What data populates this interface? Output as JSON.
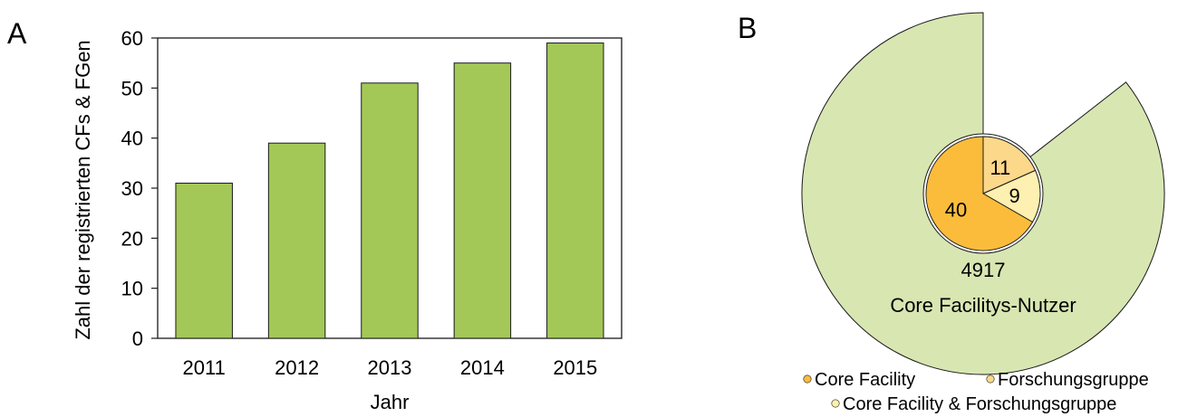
{
  "panels": {
    "a_label": "A",
    "b_label": "B"
  },
  "colors": {
    "bar": "#a3c857",
    "bar_stroke": "#1a1a1a",
    "ring": "#d8e6b2",
    "core_facility": "#fbbc3c",
    "forschungsgruppe": "#fcd88a",
    "core_facility_forschungsgruppe": "#fdf0b0"
  },
  "chart_data": [
    {
      "type": "bar",
      "title": "",
      "xlabel": "Jahr",
      "ylabel": "Zahl der registrierten CFs & FGen",
      "categories": [
        "2011",
        "2012",
        "2013",
        "2014",
        "2015"
      ],
      "values": [
        31,
        39,
        51,
        55,
        59
      ],
      "ylim": [
        0,
        60
      ],
      "yticks": [
        "0",
        "10",
        "20",
        "30",
        "40",
        "50",
        "60"
      ],
      "grid": false
    },
    {
      "type": "pie",
      "title": "",
      "outer_ring": {
        "value": "4917",
        "label": "Core Facilitys-Nutzer"
      },
      "slices": [
        {
          "name": "Core Facility",
          "value": 40
        },
        {
          "name": "Forschungsgruppe",
          "value": 11
        },
        {
          "name": "Core Facility & Forschungsgruppe",
          "value": 9
        }
      ],
      "legend": {
        "placement": "bottom",
        "items": [
          "Core Facility",
          "Forschungsgruppe",
          "Core Facility & Forschungsgruppe"
        ]
      }
    }
  ]
}
